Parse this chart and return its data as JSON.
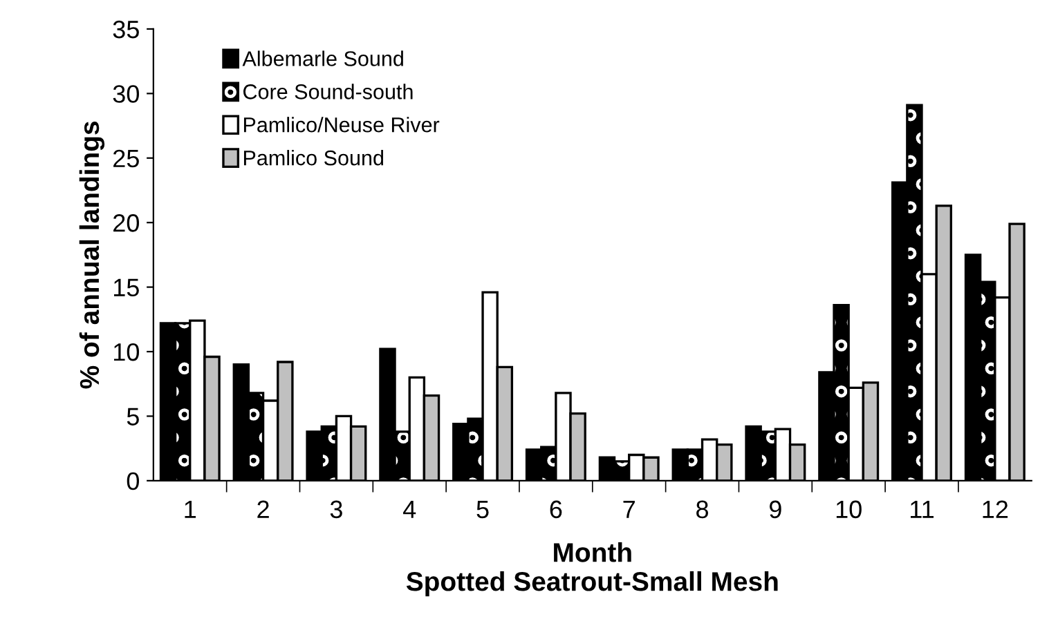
{
  "chart_data": {
    "type": "bar",
    "title": "Spotted Seatrout-Small Mesh",
    "xlabel": "Month",
    "ylabel": "% of annual landings",
    "categories": [
      "1",
      "2",
      "3",
      "4",
      "5",
      "6",
      "7",
      "8",
      "9",
      "10",
      "11",
      "12"
    ],
    "series": [
      {
        "name": "Albemarle Sound",
        "color": "#000000",
        "values": [
          12.2,
          9.0,
          3.8,
          10.2,
          4.4,
          2.4,
          1.8,
          2.4,
          4.2,
          8.4,
          23.1,
          17.5
        ]
      },
      {
        "name": "Core Sound-south",
        "color": "#000000",
        "values": [
          12.2,
          6.8,
          4.2,
          3.8,
          4.8,
          2.6,
          1.5,
          2.4,
          3.8,
          13.6,
          29.1,
          15.4
        ]
      },
      {
        "name": "Pamlico/Neuse River",
        "color": "#ffffff",
        "values": [
          12.4,
          6.2,
          5.0,
          8.0,
          14.6,
          6.8,
          2.0,
          3.2,
          4.0,
          7.2,
          16.0,
          14.2
        ]
      },
      {
        "name": "Pamlico Sound",
        "color": "#c0c0c0",
        "values": [
          9.6,
          9.2,
          4.2,
          6.6,
          8.8,
          5.2,
          1.8,
          2.8,
          2.8,
          7.6,
          21.3,
          19.9
        ]
      }
    ],
    "ylim": [
      0,
      35
    ],
    "yticks": [
      0,
      5,
      10,
      15,
      20,
      25,
      30,
      35
    ],
    "grid": false,
    "legend": "top left"
  }
}
